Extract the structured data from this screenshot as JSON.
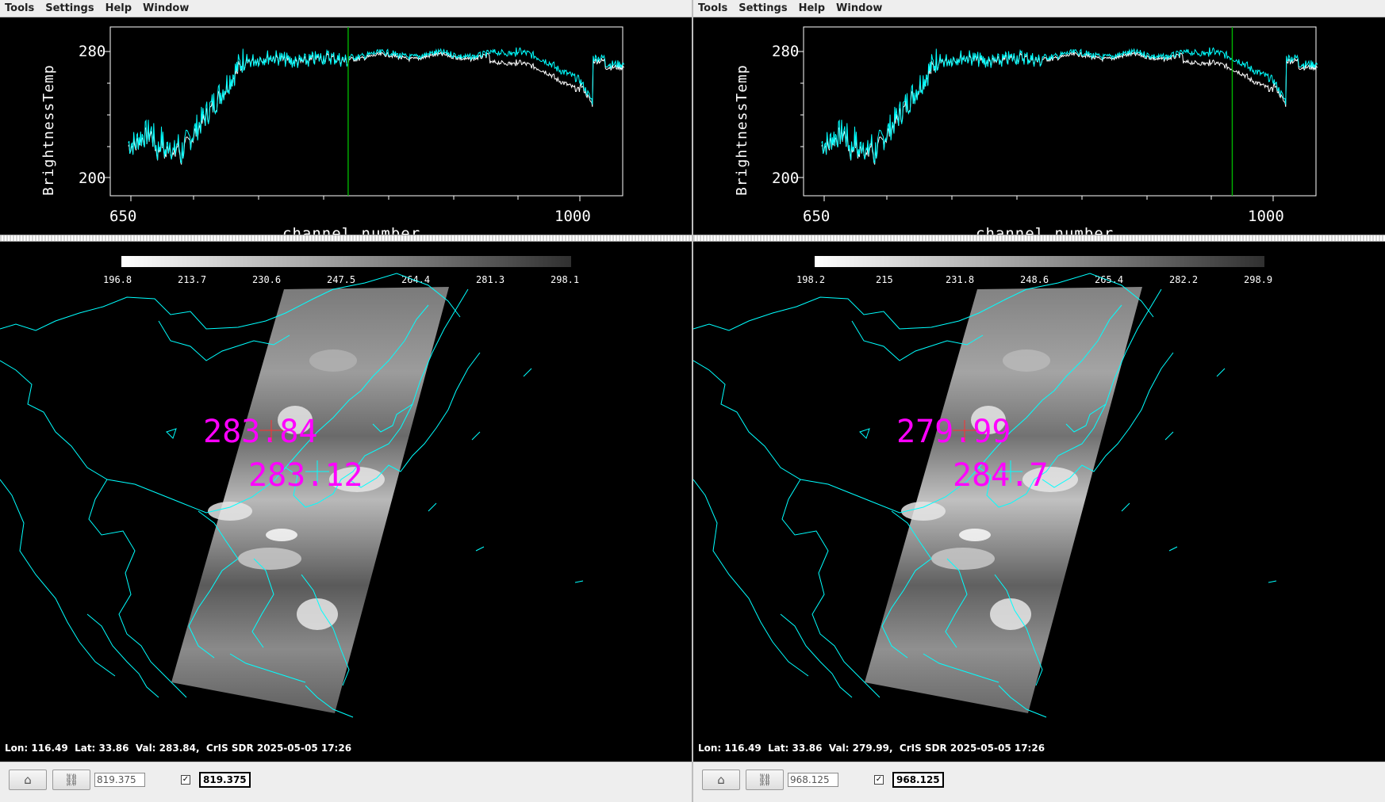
{
  "menu": [
    "Tools",
    "Settings",
    "Help",
    "Window"
  ],
  "colors": {
    "background": "#000000",
    "spectrum_main": "#00ffff",
    "spectrum_secondary": "#ffffff",
    "channel_marker": "#00b400",
    "coastlines": "#00ffff",
    "probe_text": "#ff00ff",
    "probe_cross_1": "#ff3030",
    "probe_cross_2": "#00ffff"
  },
  "panels": [
    {
      "id": "left",
      "spectrum": {
        "ylabel": "BrightnessTemp",
        "xlabel": "channel number",
        "y_ticks": [
          "200",
          "280"
        ],
        "x_ticks": [
          "650",
          "1000"
        ],
        "xlim": [
          635,
          1035
        ],
        "ylim": [
          190,
          296
        ],
        "marker_wavenumber": 819.375
      },
      "colorbar": {
        "labels": [
          "196.8",
          "213.7",
          "230.6",
          "247.5",
          "264.4",
          "281.3",
          "298.1"
        ]
      },
      "probes": [
        "283.84",
        "283.12"
      ],
      "status": {
        "lon": "116.49",
        "lat": "33.86",
        "val": "283.84",
        "text": "Lon: 116.49  Lat: 33.86  Val: 283.84,  CrIS SDR 2025-05-05 17:26"
      },
      "toolbar": {
        "home_icon": "home-icon",
        "link_icon": "link-icon",
        "channel_value": "819.375",
        "checkbox_checked": true,
        "display_value": "819.375"
      }
    },
    {
      "id": "right",
      "spectrum": {
        "ylabel": "BrightnessTemp",
        "xlabel": "channel number",
        "y_ticks": [
          "200",
          "280"
        ],
        "x_ticks": [
          "650",
          "1000"
        ],
        "xlim": [
          635,
          1035
        ],
        "ylim": [
          190,
          296
        ],
        "marker_wavenumber": 968.125
      },
      "colorbar": {
        "labels": [
          "198.2",
          "215",
          "231.8",
          "248.6",
          "265.4",
          "282.2",
          "298.9"
        ]
      },
      "probes": [
        "279.99",
        "284.7"
      ],
      "status": {
        "lon": "116.49",
        "lat": "33.86",
        "val": "279.99",
        "text": "Lon: 116.49  Lat: 33.86  Val: 279.99,  CrIS SDR 2025-05-05 17:26"
      },
      "toolbar": {
        "home_icon": "home-icon",
        "link_icon": "link-icon",
        "channel_value": "968.125",
        "checkbox_checked": true,
        "display_value": "968.125"
      }
    }
  ]
}
